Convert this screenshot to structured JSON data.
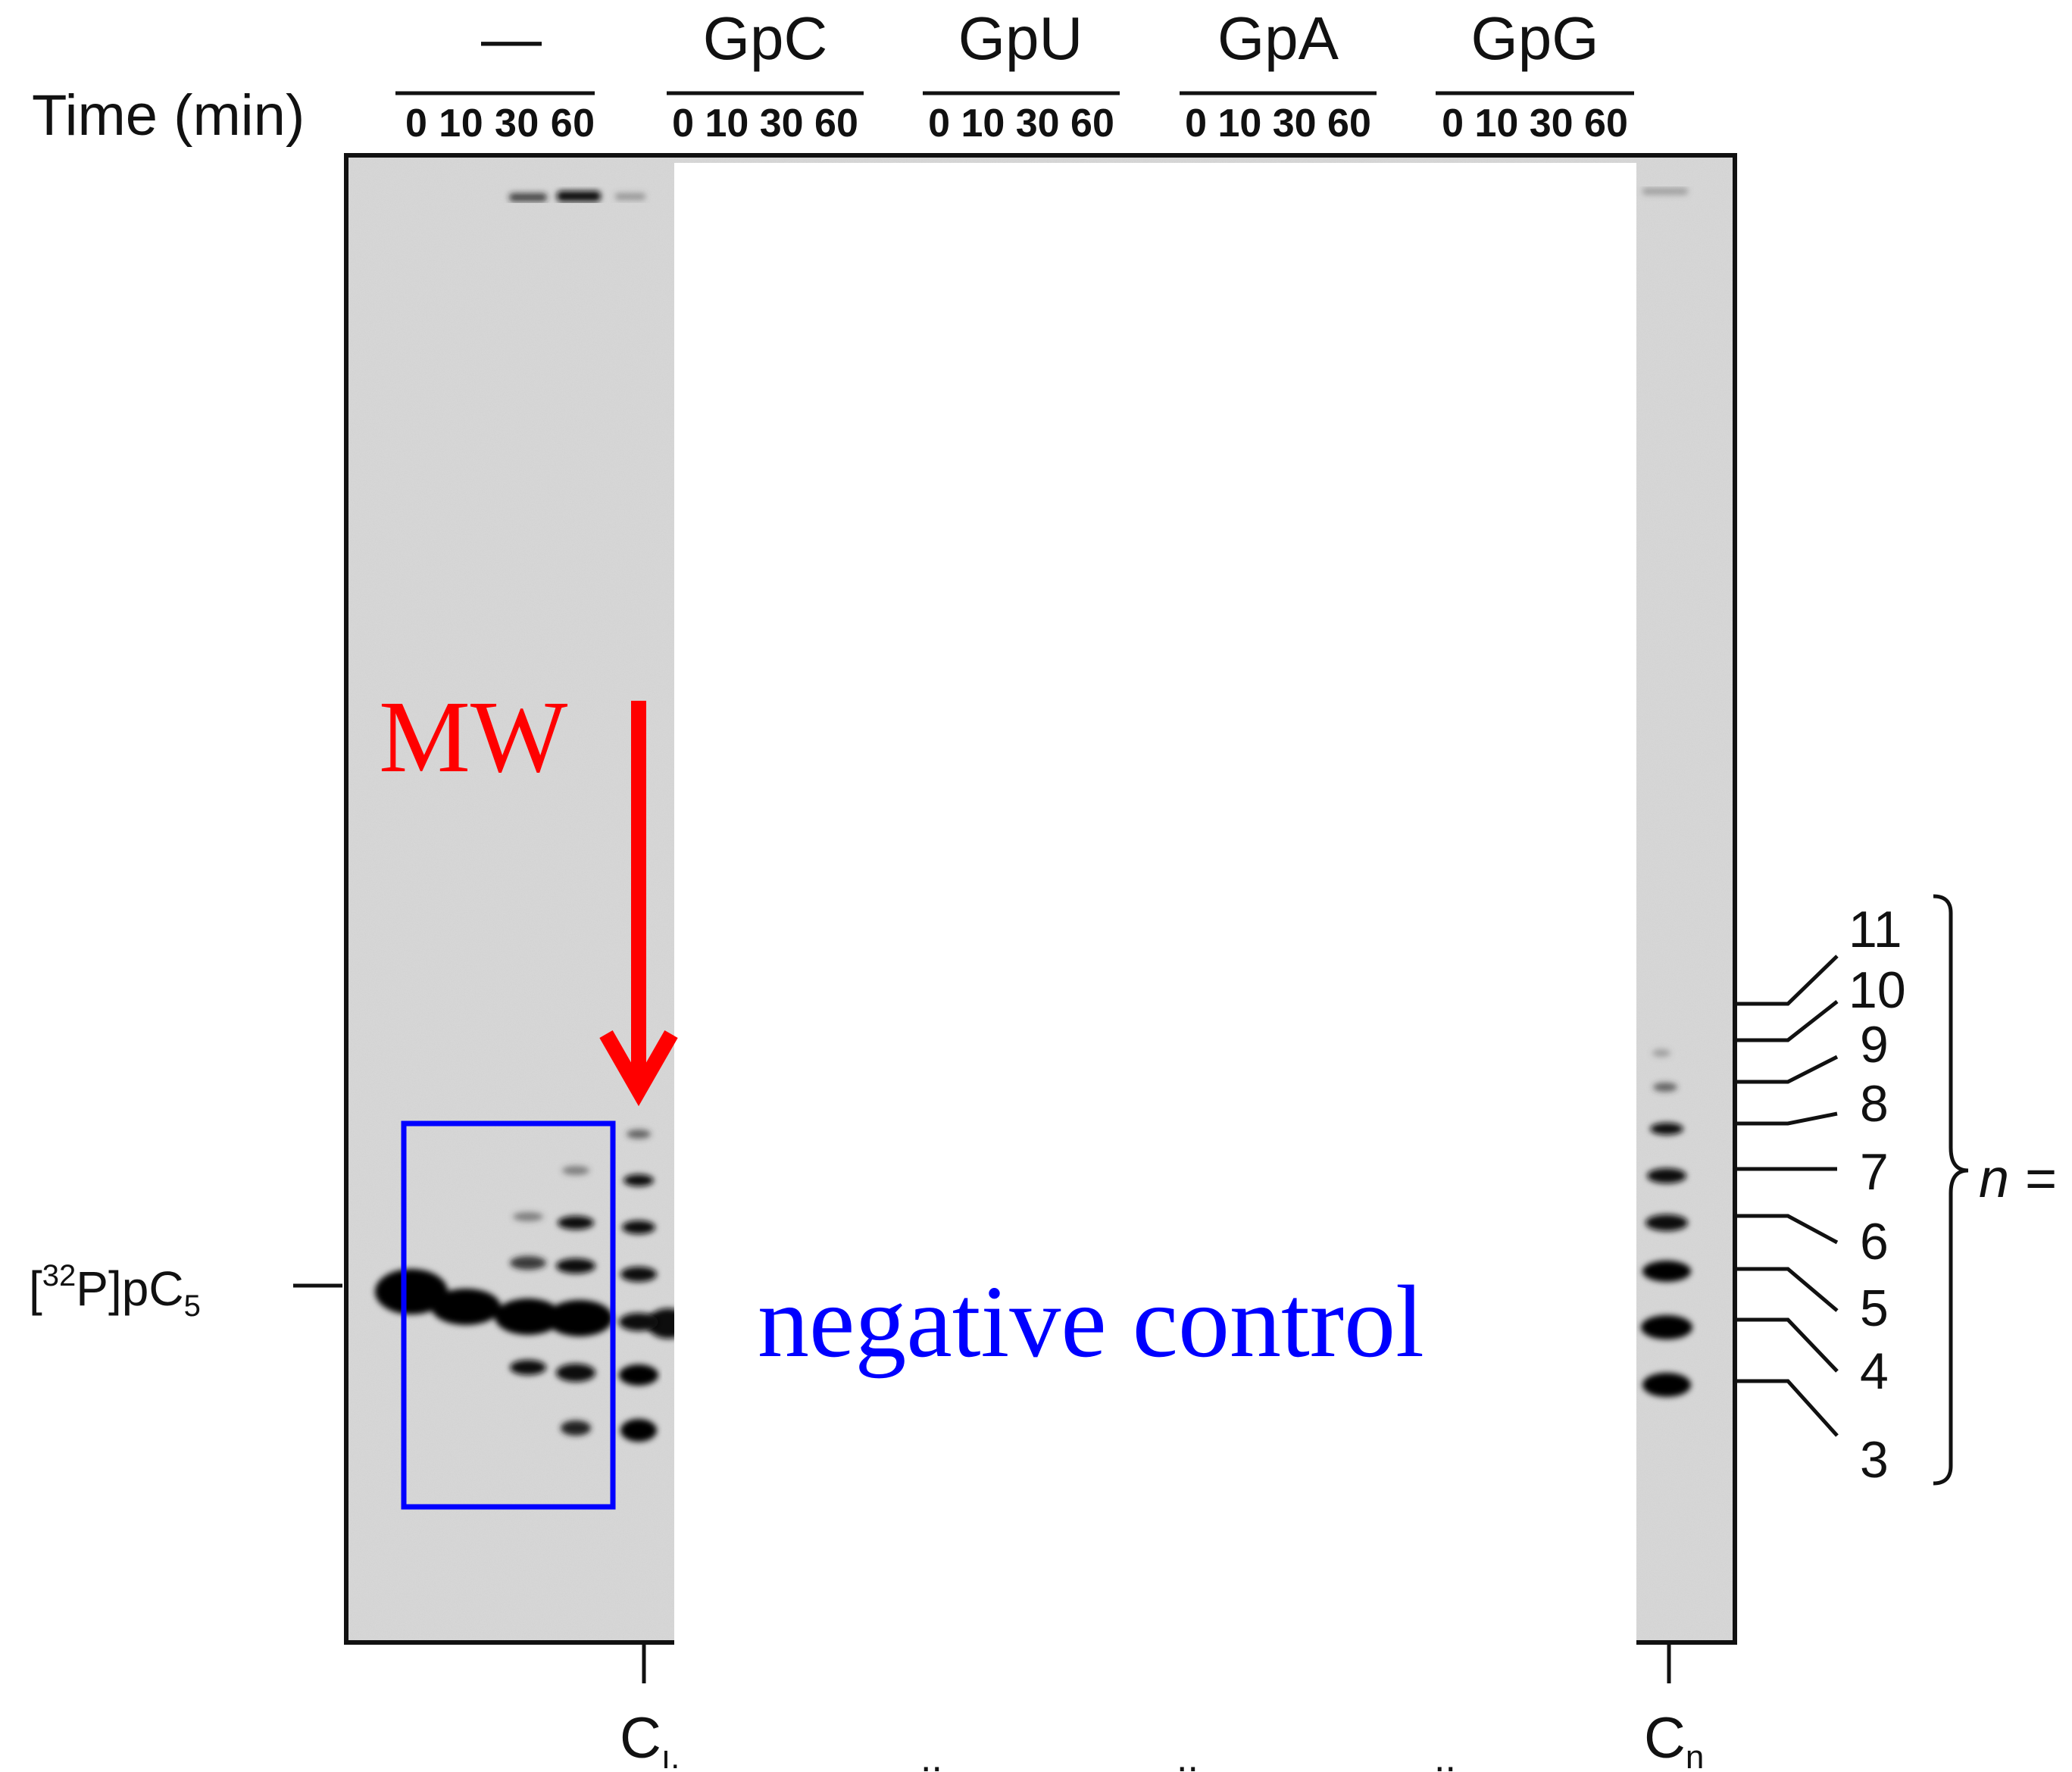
{
  "header": {
    "time_label": "Time (min)",
    "groups": [
      {
        "label": "—",
        "times": "0 10 30 60"
      },
      {
        "label": "GpC",
        "times": "0 10 30 60"
      },
      {
        "label": "GpU",
        "times": "0 10 30 60"
      },
      {
        "label": "GpA",
        "times": "0 10 30 60"
      },
      {
        "label": "GpG",
        "times": "0 10 30 60"
      }
    ]
  },
  "substrate_label": {
    "prefix": "[",
    "sup": "32",
    "mid": "P]pC",
    "sub": "5"
  },
  "annotations": {
    "mw_label": "MW",
    "negative_control_label": "negative control",
    "color_red": "#ff0000",
    "color_blue": "#0000ff"
  },
  "markers": {
    "left_lane": {
      "main": "C",
      "sub": "ı."
    },
    "right_lane": {
      "main": "C",
      "sub": "n"
    },
    "partial": [
      "..",
      "..",
      ".."
    ]
  },
  "ladder": {
    "numbers": [
      "11",
      "10",
      "9",
      "8",
      "7",
      "6",
      "5",
      "4",
      "3"
    ],
    "n_label": "n ="
  }
}
